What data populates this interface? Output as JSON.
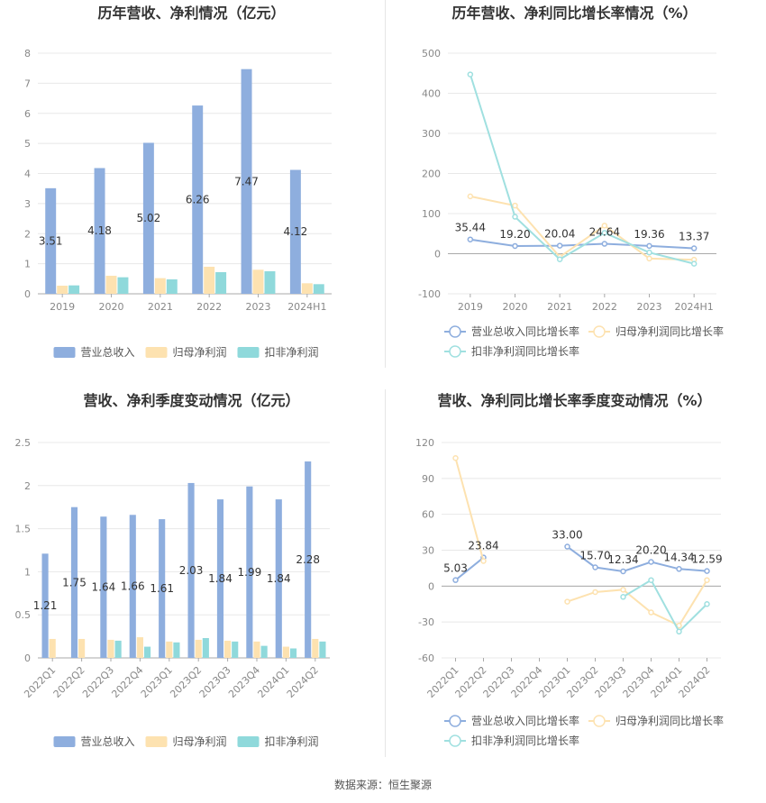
{
  "footer": "数据来源：恒生聚源",
  "colors": {
    "revenue": "#8eaede",
    "net_profit": "#fde2b0",
    "deducted": "#8fd9db",
    "rev_growth": "#8eaede",
    "np_growth": "#fde2b0",
    "ded_growth": "#a0e0e0",
    "grid": "#e8e8e8",
    "axis": "#999999"
  },
  "chart_data": [
    {
      "id": "annual-bar",
      "type": "bar",
      "title": "历年营收、净利情况（亿元）",
      "categories": [
        "2019",
        "2020",
        "2021",
        "2022",
        "2023",
        "2024H1"
      ],
      "ylim": [
        0,
        8
      ],
      "yticks": [
        "0",
        "1",
        "2",
        "3",
        "4",
        "5",
        "6",
        "7",
        "8"
      ],
      "series": [
        {
          "name": "营业总收入",
          "values": [
            3.51,
            4.18,
            5.02,
            6.26,
            7.47,
            4.12
          ],
          "labels": [
            "3.51",
            "4.18",
            "5.02",
            "6.26",
            "7.47",
            "4.12"
          ]
        },
        {
          "name": "归母净利润",
          "values": [
            0.27,
            0.6,
            0.52,
            0.9,
            0.8,
            0.35
          ]
        },
        {
          "name": "扣非净利润",
          "values": [
            0.28,
            0.55,
            0.48,
            0.72,
            0.75,
            0.32
          ]
        }
      ],
      "legend_position": "bottom"
    },
    {
      "id": "annual-line",
      "type": "line",
      "title": "历年营收、净利同比增长率情况（%）",
      "categories": [
        "2019",
        "2020",
        "2021",
        "2022",
        "2023",
        "2024H1"
      ],
      "ylim": [
        -100,
        500
      ],
      "yticks": [
        "-100",
        "0",
        "100",
        "200",
        "300",
        "400",
        "500"
      ],
      "series": [
        {
          "name": "营业总收入同比增长率",
          "values": [
            35.44,
            19.2,
            20.04,
            24.64,
            19.36,
            13.37
          ],
          "labels": [
            "35.44",
            "19.20",
            "20.04",
            "24.64",
            "19.36",
            "13.37"
          ]
        },
        {
          "name": "归母净利润同比增长率",
          "values": [
            143,
            120,
            -8,
            70,
            -12,
            -15
          ]
        },
        {
          "name": "扣非净利润同比增长率",
          "values": [
            447,
            92,
            -14,
            52,
            3,
            -25
          ]
        }
      ],
      "legend_position": "bottom"
    },
    {
      "id": "quarter-bar",
      "type": "bar",
      "title": "营收、净利季度变动情况（亿元）",
      "categories": [
        "2022Q1",
        "2022Q2",
        "2022Q3",
        "2022Q4",
        "2023Q1",
        "2023Q2",
        "2023Q3",
        "2023Q4",
        "2024Q1",
        "2024Q2"
      ],
      "ylim": [
        0,
        2.5
      ],
      "yticks": [
        "0",
        "0.5",
        "1",
        "1.5",
        "2",
        "2.5"
      ],
      "series": [
        {
          "name": "营业总收入",
          "values": [
            1.21,
            1.75,
            1.64,
            1.66,
            1.61,
            2.03,
            1.84,
            1.99,
            1.84,
            2.28
          ],
          "labels": [
            "1.21",
            "1.75",
            "1.64",
            "1.66",
            "1.61",
            "2.03",
            "1.84",
            "1.99",
            "1.84",
            "2.28"
          ]
        },
        {
          "name": "归母净利润",
          "values": [
            0.22,
            0.22,
            0.21,
            0.24,
            0.19,
            0.21,
            0.2,
            0.19,
            0.13,
            0.22
          ]
        },
        {
          "name": "扣非净利润",
          "values": [
            0.0,
            0.0,
            0.2,
            0.13,
            0.18,
            0.23,
            0.19,
            0.14,
            0.11,
            0.19
          ]
        }
      ],
      "legend_position": "bottom"
    },
    {
      "id": "quarter-line",
      "type": "line",
      "title": "营收、净利同比增长率季度变动情况（%）",
      "categories": [
        "2022Q1",
        "2022Q2",
        "2022Q3",
        "2022Q4",
        "2023Q1",
        "2023Q2",
        "2023Q3",
        "2023Q4",
        "2024Q1",
        "2024Q2"
      ],
      "ylim": [
        -60,
        120
      ],
      "yticks": [
        "-60",
        "-30",
        "0",
        "30",
        "60",
        "90",
        "120"
      ],
      "series": [
        {
          "name": "营业总收入同比增长率",
          "values": [
            5.03,
            23.84,
            null,
            null,
            33.0,
            15.7,
            12.34,
            20.2,
            14.34,
            12.59
          ],
          "labels": [
            "5.03",
            "23.84",
            "",
            "",
            "33.00",
            "15.70",
            "12.34",
            "20.20",
            "14.34",
            "12.59"
          ]
        },
        {
          "name": "归母净利润同比增长率",
          "values": [
            107,
            21,
            null,
            null,
            -13,
            -5,
            -3,
            -22,
            -33,
            5
          ]
        },
        {
          "name": "扣非净利润同比增长率",
          "values": [
            null,
            null,
            null,
            null,
            null,
            null,
            -9,
            5,
            -38,
            -15
          ]
        }
      ],
      "legend_position": "bottom"
    }
  ]
}
